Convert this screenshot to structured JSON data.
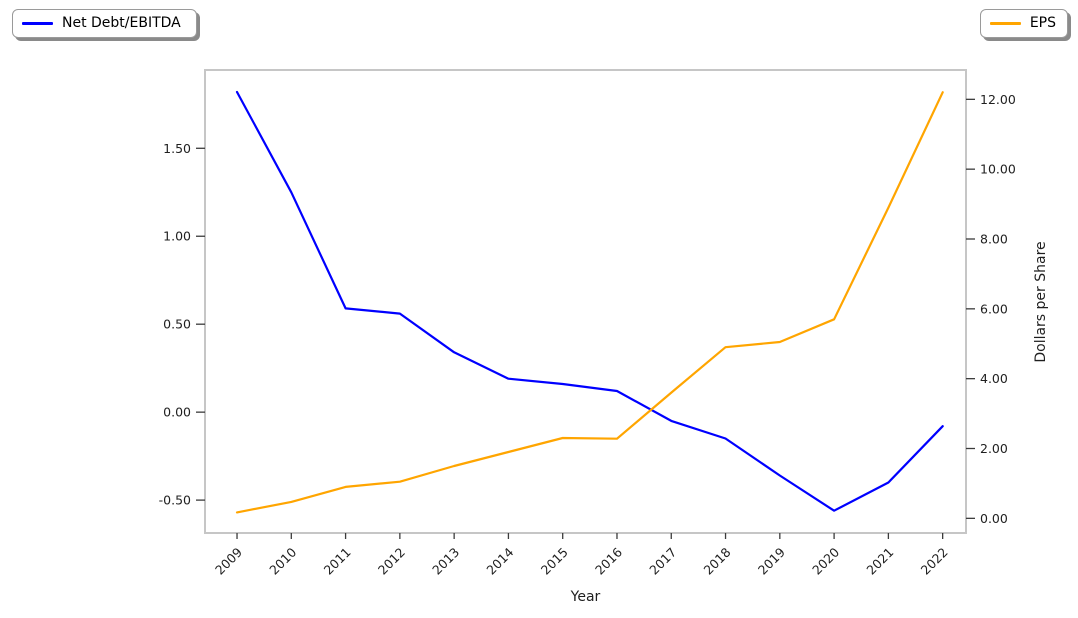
{
  "figure": {
    "background": "#ffffff"
  },
  "legends": [
    {
      "id": "net-debt-ebitda",
      "label": "Net Debt/EBITDA",
      "color": "#0000ff",
      "position": "top-left"
    },
    {
      "id": "eps",
      "label": "EPS",
      "color": "#ffa500",
      "position": "top-right"
    }
  ],
  "chart_data": {
    "type": "line",
    "title": "",
    "xlabel": "Year",
    "ylabel_left": "",
    "ylabel_right": "Dollars per Share",
    "categories": [
      2009,
      2010,
      2011,
      2012,
      2013,
      2014,
      2015,
      2016,
      2017,
      2018,
      2019,
      2020,
      2021,
      2022
    ],
    "series": [
      {
        "name": "Net Debt/EBITDA",
        "axis": "left",
        "color": "#0000ff",
        "values": [
          1.82,
          1.25,
          0.59,
          0.56,
          0.34,
          0.19,
          0.16,
          0.12,
          -0.05,
          -0.15,
          -0.36,
          -0.56,
          -0.4,
          -0.08
        ]
      },
      {
        "name": "EPS",
        "axis": "right",
        "color": "#ffa500",
        "values": [
          0.17,
          0.47,
          0.9,
          1.05,
          1.5,
          1.9,
          2.3,
          2.28,
          3.6,
          4.9,
          5.05,
          5.7,
          8.9,
          12.2
        ]
      }
    ],
    "left_axis": {
      "ticks": [
        -0.5,
        0.0,
        0.5,
        1.0,
        1.5
      ],
      "decimals": 2,
      "range": [
        -0.687,
        1.945
      ]
    },
    "right_axis": {
      "ticks": [
        0.0,
        2.0,
        4.0,
        6.0,
        8.0,
        10.0,
        12.0
      ],
      "decimals": 2,
      "range": [
        -0.42,
        12.84
      ]
    },
    "x_axis": {
      "range": [
        2008.41,
        2022.43
      ],
      "tick_rotation_deg": 45
    },
    "grid": false,
    "legend_position": [
      "figure top-left",
      "figure top-right"
    ]
  }
}
